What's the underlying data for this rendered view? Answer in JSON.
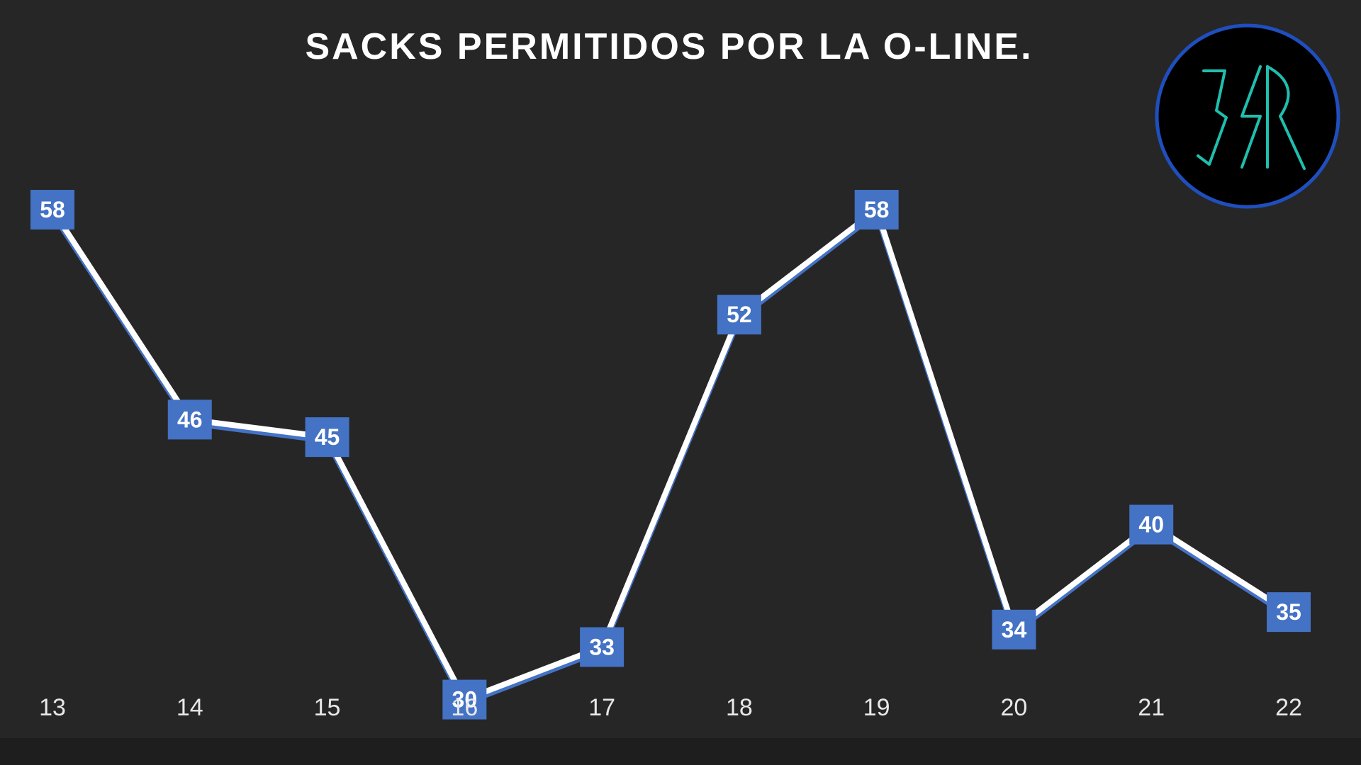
{
  "colors": {
    "background": "#262626",
    "line": "#ffffff",
    "line_shadow": "#4472c4",
    "marker": "#4472c4",
    "drop_line": "#bfbfbf",
    "logo_ring": "#1f4fbf",
    "logo_glyph": "#1fbfae"
  },
  "logo": {
    "icon": "monogram-logo-icon",
    "text": "3SR"
  },
  "chart_data": {
    "type": "line",
    "title": "SACKS PERMITIDOS POR LA O-LINE.",
    "xlabel": "",
    "ylabel": "",
    "categories": [
      "13",
      "14",
      "15",
      "16",
      "17",
      "18",
      "19",
      "20",
      "21",
      "22"
    ],
    "series": [
      {
        "values": [
          58,
          46,
          45,
          30,
          33,
          52,
          58,
          34,
          40,
          35
        ]
      }
    ],
    "ylim": [
      0,
      70
    ],
    "grid": false,
    "drop_lines": true,
    "data_labels": true,
    "legend": "none"
  }
}
